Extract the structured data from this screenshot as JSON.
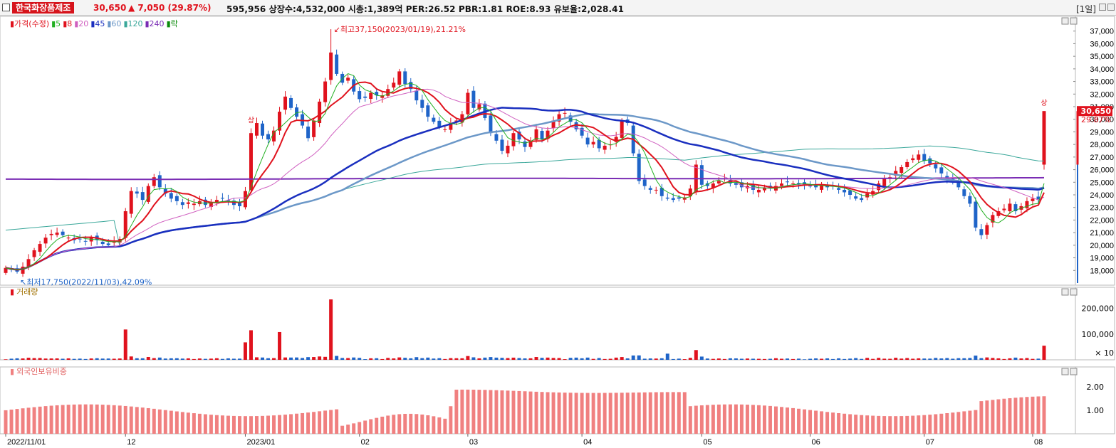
{
  "header": {
    "stock_name": "한국화장품제조",
    "price": "30,650",
    "change": "▲ 7,050 (29.87%)",
    "info": "595,956  상장수:4,532,000  시총:1,389억  PER:26.52  PBR:1.81  ROE:8.93  유보율:2,028.41",
    "period": "[1일]"
  },
  "price_legend": [
    {
      "label": "가격(수정)",
      "color": "#e0121d"
    },
    {
      "label": "5",
      "color": "#22b022"
    },
    {
      "label": "8",
      "color": "#e0121d"
    },
    {
      "label": "20",
      "color": "#d060c0"
    },
    {
      "label": "45",
      "color": "#1a2fbf"
    },
    {
      "label": "60",
      "color": "#6c98c8"
    },
    {
      "label": "120",
      "color": "#3aa79a"
    },
    {
      "label": "240",
      "color": "#7a2cb4"
    },
    {
      "label": "락",
      "color": "#0a8a0a"
    }
  ],
  "annotations": {
    "high": "최고37,150(2023/01/19),21.21%",
    "low": "최저17,750(2022/11/03),42.09%",
    "upper_limit_mark": "상",
    "last_price_label": "30,650",
    "last_change_label": "29.87%"
  },
  "volume_legend": "거래량",
  "foreign_legend": "외국인보유비중",
  "colors": {
    "up": "#e0121d",
    "down": "#1f64c8",
    "fg_bar": "#f08080"
  },
  "chart_data": [
    {
      "type": "candlestick",
      "title": "가격(수정)",
      "ylim": [
        17000,
        38000
      ],
      "y_ticks": [
        "18,000",
        "19,000",
        "20,000",
        "21,000",
        "22,000",
        "23,000",
        "24,000",
        "25,000",
        "26,000",
        "27,000",
        "28,000",
        "29,000",
        "30,000",
        "31,000",
        "32,000",
        "33,000",
        "34,000",
        "35,000",
        "36,000",
        "37,000"
      ],
      "x_ticks": [
        "2022/11/01",
        "12",
        "2023/01",
        "02",
        "03",
        "04",
        "05",
        "06",
        "07",
        "08"
      ],
      "x_tick_index": [
        0,
        21,
        42,
        62,
        81,
        101,
        122,
        141,
        161,
        180
      ],
      "close_key": [
        18200,
        18050,
        17900,
        18300,
        18900,
        19600,
        20100,
        20600,
        20900,
        21000,
        20800,
        20600,
        20400,
        20500,
        20300,
        20600,
        20400,
        20100,
        20000,
        20300,
        20500,
        22700,
        24300,
        24100,
        23600,
        24700,
        25400,
        24600,
        24100,
        23700,
        23500,
        23200,
        23400,
        23300,
        23500,
        23200,
        23400,
        23600,
        23700,
        23500,
        23200,
        23100,
        24300,
        28900,
        29700,
        28700,
        28400,
        29100,
        30600,
        31800,
        30900,
        30200,
        29500,
        28500,
        29900,
        31400,
        33000,
        35300,
        33600,
        32900,
        33300,
        32200,
        31600,
        31700,
        32100,
        31900,
        31900,
        32400,
        32900,
        33800,
        32800,
        32400,
        31500,
        30900,
        30200,
        29800,
        29400,
        29200,
        29700,
        29900,
        30400,
        32100,
        30900,
        31200,
        30100,
        28900,
        28300,
        27500,
        27900,
        28900,
        28400,
        27800,
        28200,
        29200,
        28400,
        29100,
        29900,
        30400,
        30500,
        29800,
        29200,
        28700,
        28000,
        28200,
        27700,
        27900,
        28000,
        28600,
        29900,
        29700,
        27300,
        25100,
        24700,
        24400,
        24400,
        23900,
        23700,
        23600,
        23700,
        23800,
        24500,
        26400,
        24800,
        24700,
        24900,
        25100,
        25300,
        24900,
        24800,
        24600,
        24700,
        24400,
        24400,
        24600,
        24500,
        24700,
        24900,
        25000,
        24900,
        24800,
        24800,
        24700,
        24600,
        24800,
        24600,
        24700,
        24400,
        24200,
        24000,
        23700,
        23600,
        24100,
        24300,
        24900,
        25300,
        25400,
        25900,
        26200,
        26600,
        26900,
        27200,
        26700,
        26500,
        26100,
        25700,
        25300,
        25000,
        24600,
        23900,
        23300,
        21400,
        20800,
        21600,
        22400,
        22700,
        22900,
        23300,
        22700,
        23100,
        23500,
        23700,
        23600,
        30650
      ],
      "volume_ticks": [
        "200,000",
        "100,000",
        "× 10"
      ],
      "foreign_ticks": [
        "2.00",
        "1.00"
      ]
    }
  ]
}
